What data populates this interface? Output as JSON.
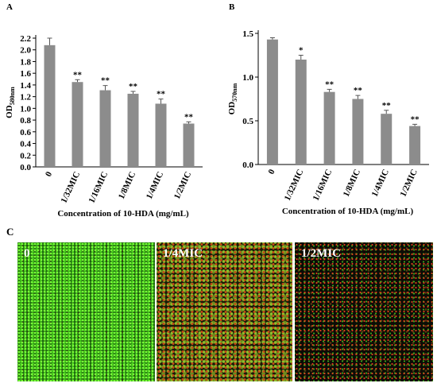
{
  "chart_data": [
    {
      "type": "bar",
      "label": "A",
      "y_label": "OD",
      "y_label_sub": "580nm",
      "x_label": "Concentration of 10-HDA (mg/mL)",
      "categories": [
        "0",
        "1/32MIC",
        "1/16MIC",
        "1/8MIC",
        "1/4MIC",
        "1/2MIC"
      ],
      "values": [
        2.08,
        1.45,
        1.31,
        1.25,
        1.08,
        0.74
      ],
      "errors": [
        0.12,
        0.04,
        0.08,
        0.04,
        0.08,
        0.03
      ],
      "significance": [
        null,
        "**",
        "**",
        "**",
        "**",
        "**"
      ],
      "color": "#8c8c8c",
      "ylim": [
        0,
        2.2
      ],
      "yticks": [
        {
          "value": 0,
          "label": "0.0"
        },
        0.2,
        0.4,
        0.6,
        0.8,
        {
          "value": 1,
          "label": "1.0"
        },
        1.2,
        1.4,
        1.6,
        1.8,
        {
          "value": 2,
          "label": "2.0"
        },
        2.2
      ]
    },
    {
      "type": "bar",
      "label": "B",
      "y_label": "OD",
      "y_label_sub": "570nm",
      "x_label": "Concentration of 10-HDA (mg/mL)",
      "categories": [
        "0",
        "1/32MIC",
        "1/16MIC",
        "1/8MIC",
        "1/4MIC",
        "1/2MIC"
      ],
      "values": [
        1.43,
        1.2,
        0.83,
        0.75,
        0.58,
        0.44
      ],
      "errors": [
        0.02,
        0.05,
        0.03,
        0.04,
        0.04,
        0.02
      ],
      "significance": [
        null,
        "*",
        "**",
        "**",
        "**",
        "**"
      ],
      "color": "#8c8c8c",
      "ylim": [
        0,
        1.5
      ],
      "yticks": [
        {
          "value": 0,
          "label": "0.0"
        },
        0.5,
        {
          "value": 1,
          "label": "1.0"
        },
        {
          "value": 1.5,
          "label": "1.5"
        }
      ]
    }
  ],
  "panel_c": {
    "label": "C",
    "images": [
      "0",
      "1/4MIC",
      "1/2MIC"
    ]
  }
}
